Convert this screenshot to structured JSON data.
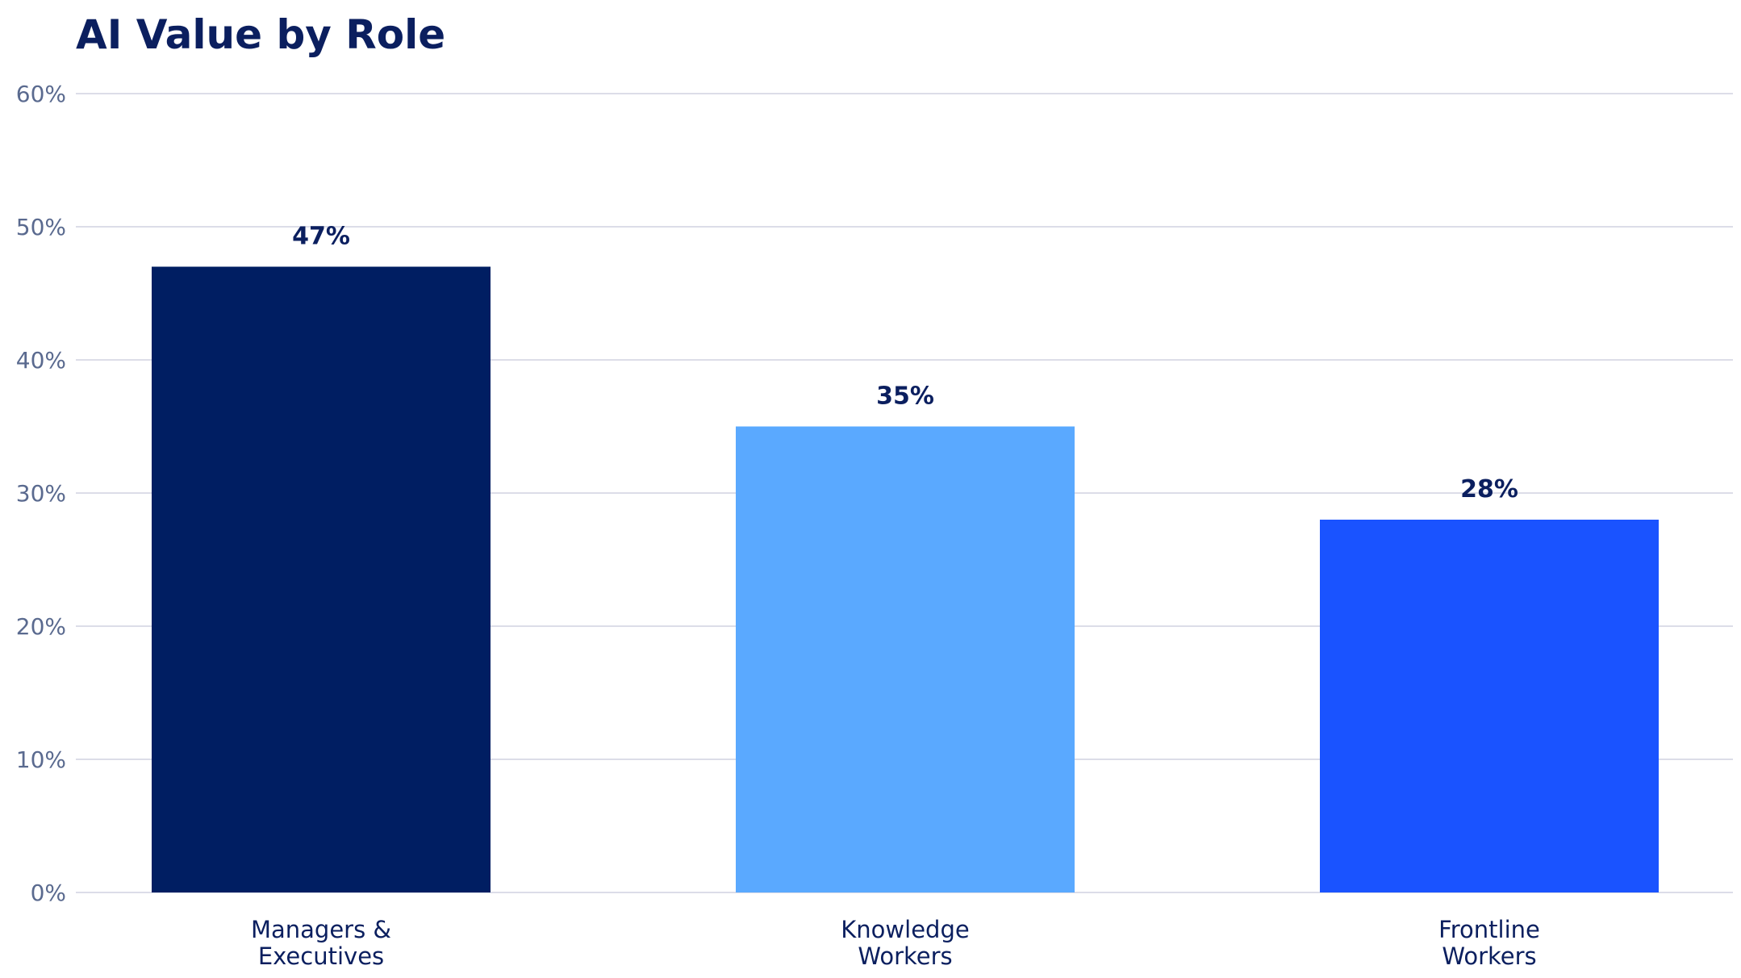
{
  "colors": {
    "title": "#0b1f5f",
    "tick_text": "#5a6a8f",
    "category_text": "#0b1f5f",
    "data_label": "#0b1f5f",
    "grid": "#dcdde8",
    "bars": [
      "#001e62",
      "#5aa9ff",
      "#1a53ff"
    ]
  },
  "chart_data": {
    "type": "bar",
    "title": "AI Value by Role",
    "xlabel": "",
    "ylabel": "",
    "categories": [
      [
        "Managers &",
        "Executives"
      ],
      [
        "Knowledge",
        "Workers"
      ],
      [
        "Frontline",
        "Workers"
      ]
    ],
    "values": [
      47,
      35,
      28
    ],
    "value_labels": [
      "47%",
      "35%",
      "28%"
    ],
    "ylim": [
      0,
      60
    ],
    "yticks": [
      0,
      10,
      20,
      30,
      40,
      50,
      60
    ],
    "ytick_labels": [
      "0%",
      "10%",
      "20%",
      "30%",
      "40%",
      "50%",
      "60%"
    ],
    "grid": true,
    "legend": "none"
  }
}
